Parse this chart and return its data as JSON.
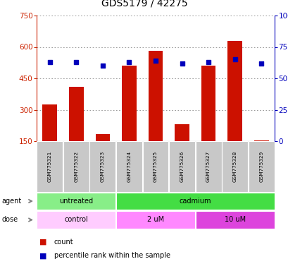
{
  "title": "GDS5179 / 42275",
  "samples": [
    "GSM775321",
    "GSM775322",
    "GSM775323",
    "GSM775324",
    "GSM775325",
    "GSM775326",
    "GSM775327",
    "GSM775328",
    "GSM775329"
  ],
  "counts": [
    325,
    410,
    185,
    510,
    580,
    230,
    510,
    630,
    155
  ],
  "percentiles": [
    63,
    63,
    60,
    63,
    64,
    62,
    63,
    65,
    62
  ],
  "ylim_left": [
    150,
    750
  ],
  "ylim_right": [
    0,
    100
  ],
  "yticks_left": [
    150,
    300,
    450,
    600,
    750
  ],
  "yticks_right": [
    0,
    25,
    50,
    75,
    100
  ],
  "agent_defs": [
    {
      "label": "untreated",
      "start": 0,
      "end": 2,
      "color": "#88EE88"
    },
    {
      "label": "cadmium",
      "start": 3,
      "end": 8,
      "color": "#44DD44"
    }
  ],
  "dose_defs": [
    {
      "label": "control",
      "start": 0,
      "end": 2,
      "color": "#FFCCFF"
    },
    {
      "label": "2 uM",
      "start": 3,
      "end": 5,
      "color": "#FF88FF"
    },
    {
      "label": "10 uM",
      "start": 6,
      "end": 8,
      "color": "#DD44DD"
    }
  ],
  "bar_color": "#CC1100",
  "dot_color": "#0000BB",
  "left_axis_color": "#CC2200",
  "right_axis_color": "#0000BB",
  "tick_bg_color": "#C8C8C8",
  "grid_color": "#888888",
  "bar_width": 0.55
}
